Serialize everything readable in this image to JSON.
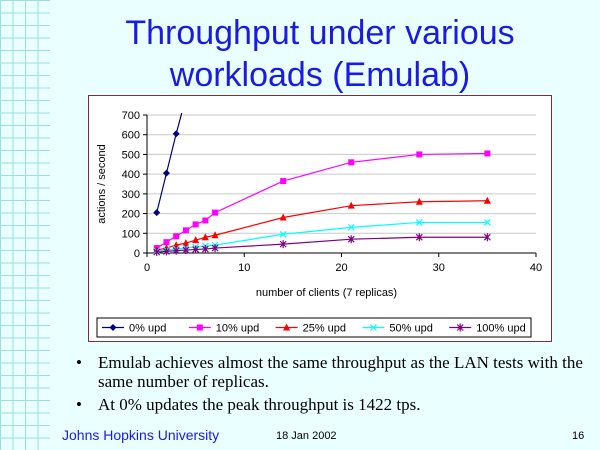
{
  "slide": {
    "title_line1": "Throughput under various",
    "title_line2": "workloads (Emulab)",
    "bullets": [
      "Emulab achieves almost the same throughput as the LAN tests with the same number of replicas.",
      "At 0% updates the peak throughput is 1422 tps."
    ],
    "footer_left": "Johns Hopkins University",
    "footer_date": "18 Jan 2002",
    "page_number": "16"
  },
  "chart_data": {
    "type": "line",
    "title": "",
    "xlabel": "number of clients (7 replicas)",
    "ylabel": "actions / second",
    "xlim": [
      0,
      40
    ],
    "ylim": [
      0,
      700
    ],
    "x_ticks": [
      0,
      10,
      20,
      30,
      40
    ],
    "y_ticks": [
      0,
      100,
      200,
      300,
      400,
      500,
      600,
      700
    ],
    "legend_position": "bottom",
    "series": [
      {
        "name": "0% upd",
        "color": "#000080",
        "marker": "diamond",
        "x": [
          1,
          2,
          3,
          3.6
        ],
        "y": [
          205,
          405,
          605,
          715
        ]
      },
      {
        "name": "10% upd",
        "color": "#ff00ff",
        "marker": "square",
        "x": [
          1,
          2,
          3,
          4,
          5,
          6,
          7,
          14,
          21,
          28,
          35
        ],
        "y": [
          25,
          55,
          85,
          115,
          145,
          165,
          205,
          365,
          460,
          500,
          505
        ]
      },
      {
        "name": "25% upd",
        "color": "#ff0000",
        "marker": "triangle",
        "x": [
          1,
          2,
          3,
          4,
          5,
          6,
          7,
          14,
          21,
          28,
          35
        ],
        "y": [
          15,
          25,
          40,
          50,
          65,
          80,
          90,
          180,
          240,
          260,
          265
        ]
      },
      {
        "name": "50% upd",
        "color": "#00ffff",
        "marker": "x",
        "x": [
          1,
          2,
          3,
          4,
          5,
          6,
          7,
          14,
          21,
          28,
          35
        ],
        "y": [
          10,
          15,
          20,
          25,
          30,
          35,
          40,
          95,
          130,
          155,
          155
        ]
      },
      {
        "name": "100% upd",
        "color": "#800080",
        "marker": "star",
        "x": [
          1,
          2,
          3,
          4,
          5,
          6,
          7,
          14,
          21,
          28,
          35
        ],
        "y": [
          5,
          8,
          12,
          15,
          18,
          20,
          25,
          45,
          70,
          80,
          80
        ]
      }
    ]
  }
}
